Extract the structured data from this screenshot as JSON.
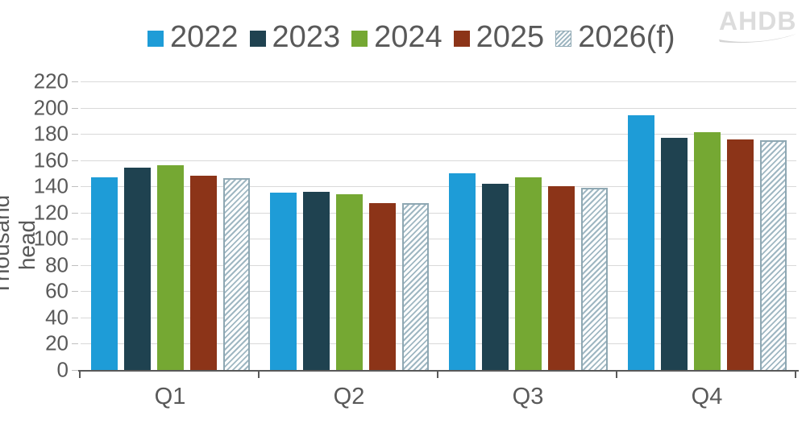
{
  "logo": {
    "text": "AHDB"
  },
  "colors": {
    "text": "#595959",
    "grid": "#d9d9d9",
    "axis": "#595959",
    "hatch_line": "#9fb7c2",
    "hatch_border": "#8fa8b3",
    "logo_grey": "#dcdcdc"
  },
  "chart_data": {
    "type": "bar",
    "title": "",
    "ylabel": "Thousand head",
    "xlabel": "",
    "categories": [
      "Q1",
      "Q2",
      "Q3",
      "Q4"
    ],
    "series": [
      {
        "name": "2022",
        "color": "#1e9cd7",
        "pattern": "solid",
        "values": [
          147,
          135,
          150,
          194
        ]
      },
      {
        "name": "2023",
        "color": "#1f4250",
        "pattern": "solid",
        "values": [
          154,
          136,
          142,
          177
        ]
      },
      {
        "name": "2024",
        "color": "#75a833",
        "pattern": "solid",
        "values": [
          156,
          134,
          147,
          181
        ]
      },
      {
        "name": "2025",
        "color": "#8c3418",
        "pattern": "solid",
        "values": [
          148,
          127,
          140,
          176
        ]
      },
      {
        "name": "2026(f)",
        "color": "#9fb7c2",
        "pattern": "hatch",
        "values": [
          146,
          127,
          139,
          175
        ]
      }
    ],
    "ylim": [
      0,
      220
    ],
    "ytick_step": 20,
    "grid": true,
    "legend_position": "top"
  }
}
